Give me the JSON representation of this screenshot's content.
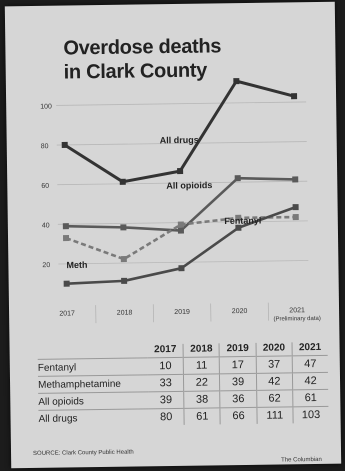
{
  "chart_data": {
    "type": "line",
    "title_line1": "Overdose deaths",
    "title_line2": "in Clark County",
    "x": [
      "2017",
      "2018",
      "2019",
      "2020",
      "2021"
    ],
    "x_note": "(Preliminary data)",
    "ylim": [
      0,
      110
    ],
    "yticks": [
      20,
      40,
      60,
      80,
      100
    ],
    "grid": true,
    "series": [
      {
        "name": "All drugs",
        "values": [
          80,
          61,
          66,
          111,
          103
        ],
        "color": "#333333"
      },
      {
        "name": "All opioids",
        "values": [
          39,
          38,
          36,
          62,
          61
        ],
        "color": "#5a5a5a"
      },
      {
        "name": "Meth",
        "values": [
          33,
          22,
          39,
          42,
          42
        ],
        "color": "#7a7a7a"
      },
      {
        "name": "Fentanyl",
        "values": [
          10,
          11,
          17,
          37,
          47
        ],
        "color": "#4a4a4a"
      }
    ]
  },
  "table": {
    "columns": [
      "2017",
      "2018",
      "2019",
      "2020",
      "2021"
    ],
    "rows": [
      {
        "label": "Fentanyl",
        "values": [
          "10",
          "11",
          "17",
          "37",
          "47"
        ]
      },
      {
        "label": "Methamphetamine",
        "values": [
          "33",
          "22",
          "39",
          "42",
          "42"
        ]
      },
      {
        "label": "All opioids",
        "values": [
          "39",
          "38",
          "36",
          "62",
          "61"
        ]
      },
      {
        "label": "All drugs",
        "values": [
          "80",
          "61",
          "66",
          "111",
          "103"
        ]
      }
    ]
  },
  "source": "SOURCE: Clark County Public Health",
  "credit": "The Columbian"
}
